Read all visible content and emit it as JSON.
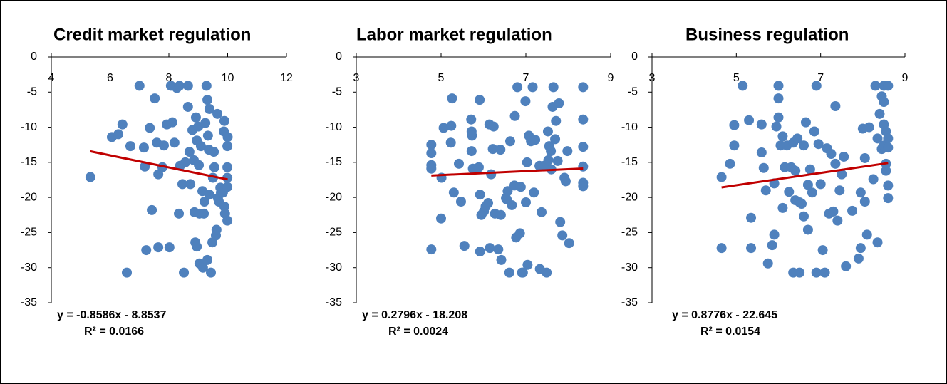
{
  "chart_data": [
    {
      "type": "scatter",
      "title": "Credit market regulation",
      "color": "#4f81bd",
      "xlim": [
        4,
        12
      ],
      "xticks": [
        4,
        6,
        8,
        10,
        12
      ],
      "ylim": [
        -35,
        0
      ],
      "yticks": [
        -35,
        -30,
        -25,
        -20,
        -15,
        -10,
        -5,
        0
      ],
      "x": [
        5.33,
        6.06,
        6.28,
        6.42,
        6.69,
        6.57,
        7.0,
        7.15,
        7.18,
        7.23,
        7.35,
        7.42,
        7.52,
        7.59,
        7.64,
        7.64,
        7.78,
        7.83,
        7.93,
        8.02,
        8.07,
        8.12,
        8.19,
        8.27,
        8.36,
        8.34,
        8.38,
        8.46,
        8.51,
        8.56,
        8.65,
        8.65,
        8.7,
        8.73,
        8.8,
        8.85,
        8.87,
        8.9,
        8.92,
        8.95,
        8.95,
        9.0,
        9.02,
        9.04,
        9.04,
        9.09,
        9.14,
        9.16,
        9.19,
        9.21,
        9.24,
        9.28,
        9.31,
        9.31,
        9.33,
        9.36,
        9.38,
        9.38,
        9.43,
        9.48,
        9.5,
        9.53,
        9.55,
        9.6,
        9.62,
        9.65,
        9.67,
        9.7,
        9.75,
        9.77,
        9.84,
        9.87,
        9.89,
        9.89,
        9.91,
        9.99,
        9.99,
        9.99,
        9.99,
        9.99,
        10.0
      ],
      "values": [
        -17.1,
        -11.4,
        -11.0,
        -9.6,
        -12.7,
        -30.7,
        -4.1,
        -12.9,
        -15.6,
        -27.5,
        -10.1,
        -21.8,
        -5.9,
        -12.2,
        -16.7,
        -27.1,
        -15.7,
        -12.6,
        -9.6,
        -27.1,
        -4.1,
        -9.3,
        -12.2,
        -4.4,
        -4.1,
        -22.3,
        -15.5,
        -18.1,
        -30.7,
        -15.0,
        -4.1,
        -7.1,
        -13.5,
        -18.1,
        -10.4,
        -14.7,
        -22.1,
        -26.4,
        -8.6,
        -11.9,
        -27.0,
        -9.9,
        -15.4,
        -22.3,
        -29.4,
        -12.7,
        -19.1,
        -30.0,
        -22.3,
        -20.6,
        -9.4,
        -4.1,
        -6.1,
        -28.9,
        -11.2,
        -13.2,
        -7.4,
        -19.6,
        -30.7,
        -26.4,
        -17.2,
        -13.5,
        -15.7,
        -25.4,
        -24.6,
        -8.1,
        -20.1,
        -20.6,
        -18.6,
        -19.3,
        -19.3,
        -10.6,
        -9.1,
        -21.3,
        -22.3,
        -12.7,
        -15.7,
        -17.2,
        -18.5,
        -23.3,
        -11.4
      ],
      "trendline": {
        "color": "#c00000",
        "slope": -0.8586,
        "intercept": -8.8537,
        "equation": "y = -0.8586x - 8.8537",
        "r2": "R² = 0.0166"
      }
    },
    {
      "type": "scatter",
      "title": "Labor market regulation",
      "color": "#4f81bd",
      "xlim": [
        3,
        9
      ],
      "xticks": [
        3,
        5,
        7,
        9
      ],
      "ylim": [
        -35,
        0
      ],
      "yticks": [
        -35,
        -30,
        -25,
        -20,
        -15,
        -10,
        -5,
        0
      ],
      "x": [
        4.77,
        4.77,
        4.77,
        4.77,
        4.77,
        5.01,
        5.0,
        5.06,
        5.23,
        5.24,
        5.26,
        5.3,
        5.42,
        5.47,
        5.55,
        5.71,
        5.72,
        5.72,
        5.73,
        5.75,
        5.89,
        5.91,
        5.92,
        5.92,
        5.95,
        6.01,
        6.05,
        6.11,
        6.14,
        6.15,
        6.18,
        6.22,
        6.24,
        6.27,
        6.35,
        6.4,
        6.41,
        6.42,
        6.53,
        6.55,
        6.57,
        6.61,
        6.63,
        6.67,
        6.73,
        6.74,
        6.77,
        6.8,
        6.86,
        6.88,
        6.91,
        6.93,
        6.99,
        7.0,
        7.03,
        7.04,
        7.07,
        7.12,
        7.16,
        7.19,
        7.22,
        7.32,
        7.33,
        7.37,
        7.43,
        7.49,
        7.52,
        7.53,
        7.55,
        7.59,
        7.6,
        7.63,
        7.65,
        7.69,
        7.71,
        7.75,
        7.78,
        7.81,
        7.86,
        7.91,
        7.94,
        7.98,
        8.02,
        8.35,
        8.35,
        8.35,
        8.35,
        8.35,
        8.35
      ],
      "values": [
        -15.4,
        -13.7,
        -12.5,
        -15.9,
        -27.4,
        -17.2,
        -23.0,
        -10.1,
        -12.2,
        -9.8,
        -5.9,
        -19.3,
        -15.2,
        -20.6,
        -26.9,
        -8.9,
        -10.6,
        -13.4,
        -11.2,
        -15.9,
        -15.7,
        -6.1,
        -19.6,
        -27.7,
        -22.5,
        -22.0,
        -21.3,
        -20.8,
        -9.6,
        -27.2,
        -16.7,
        -13.1,
        -9.9,
        -22.3,
        -27.4,
        -13.2,
        -22.5,
        -28.9,
        -20.1,
        -20.3,
        -19.1,
        -30.7,
        -12.0,
        -21.1,
        -18.3,
        -8.4,
        -25.7,
        -4.3,
        -25.1,
        -18.5,
        -30.7,
        -30.7,
        -6.3,
        -20.7,
        -15.0,
        -29.6,
        -11.2,
        -12.0,
        -4.3,
        -19.3,
        -11.8,
        -15.5,
        -30.2,
        -22.1,
        -15.5,
        -30.7,
        -10.6,
        -14.7,
        -12.7,
        -13.4,
        -16.0,
        -7.1,
        -4.3,
        -11.7,
        -9.1,
        -14.8,
        -6.6,
        -23.5,
        -25.4,
        -17.2,
        -17.7,
        -13.4,
        -26.5,
        -4.3,
        -8.9,
        -12.8,
        -15.6,
        -17.9,
        -18.4
      ],
      "trendline": {
        "color": "#c00000",
        "slope": 0.2796,
        "intercept": -18.208,
        "equation": "y = 0.2796x - 18.208",
        "r2": "R² = 0.0024"
      }
    },
    {
      "type": "scatter",
      "title": "Business regulation",
      "color": "#4f81bd",
      "xlim": [
        3,
        9
      ],
      "xticks": [
        3,
        5,
        7,
        9
      ],
      "ylim": [
        -35,
        0
      ],
      "yticks": [
        -35,
        -30,
        -25,
        -20,
        -15,
        -10,
        -5,
        0
      ],
      "x": [
        4.65,
        4.65,
        4.85,
        4.95,
        4.95,
        5.15,
        5.3,
        5.35,
        5.35,
        5.6,
        5.6,
        5.65,
        5.7,
        5.75,
        5.85,
        5.9,
        5.9,
        5.95,
        6.0,
        6.0,
        6.0,
        6.05,
        6.1,
        6.1,
        6.15,
        6.2,
        6.25,
        6.3,
        6.35,
        6.35,
        6.4,
        6.4,
        6.45,
        6.5,
        6.5,
        6.55,
        6.6,
        6.6,
        6.65,
        6.7,
        6.7,
        6.75,
        6.8,
        6.85,
        6.9,
        6.9,
        6.95,
        7.0,
        7.1,
        7.05,
        7.15,
        7.2,
        7.25,
        7.3,
        7.35,
        7.35,
        7.4,
        7.45,
        7.5,
        7.55,
        7.6,
        7.75,
        7.9,
        7.95,
        7.95,
        8.0,
        8.05,
        8.05,
        8.1,
        8.15,
        8.25,
        8.3,
        8.35,
        8.35,
        8.4,
        8.45,
        8.45,
        8.5,
        8.5,
        8.5,
        8.5,
        8.55,
        8.55,
        8.55,
        8.6,
        8.6,
        8.6,
        8.6,
        8.6
      ],
      "values": [
        -17.1,
        -27.2,
        -15.2,
        -12.6,
        -9.7,
        -4.1,
        -9.0,
        -22.9,
        -27.2,
        -9.6,
        -13.6,
        -15.8,
        -19.0,
        -29.4,
        -26.8,
        -25.3,
        -18.0,
        -9.9,
        -8.6,
        -5.9,
        -4.1,
        -12.6,
        -11.3,
        -21.5,
        -15.7,
        -12.6,
        -19.2,
        -15.7,
        -30.7,
        -12.2,
        -16.2,
        -20.4,
        -11.6,
        -20.7,
        -30.7,
        -20.9,
        -12.6,
        -22.7,
        -9.3,
        -18.2,
        -24.6,
        -16.0,
        -19.3,
        -10.6,
        -4.1,
        -30.7,
        -12.4,
        -18.1,
        -30.7,
        -27.5,
        -13.0,
        -22.3,
        -13.8,
        -22.0,
        -7.0,
        -15.2,
        -23.3,
        -19.0,
        -16.7,
        -14.2,
        -29.8,
        -21.9,
        -28.7,
        -27.2,
        -19.3,
        -10.2,
        -20.6,
        -14.4,
        -25.3,
        -10.0,
        -17.4,
        -4.1,
        -11.6,
        -26.4,
        -8.1,
        -13.1,
        -5.6,
        -4.1,
        -6.4,
        -9.6,
        -12.6,
        -10.6,
        -15.2,
        -16.2,
        -11.6,
        -12.9,
        -18.3,
        -20.1,
        -4.1
      ],
      "trendline": {
        "color": "#c00000",
        "slope": 0.8776,
        "intercept": -22.645,
        "equation": "y = 0.8776x - 22.645",
        "r2": "R² = 0.0154"
      }
    }
  ]
}
